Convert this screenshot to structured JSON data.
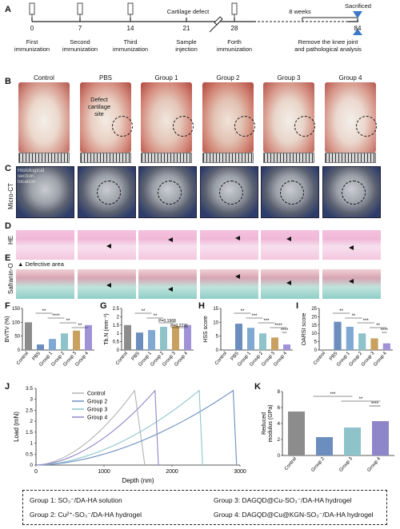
{
  "panels": {
    "A": "A",
    "B": "B",
    "C": "C",
    "D": "D",
    "E": "E",
    "F": "F",
    "G": "G",
    "H": "H",
    "I": "I",
    "J": "J",
    "K": "K"
  },
  "timeline": {
    "days": [
      "0",
      "7",
      "14",
      "21",
      "28",
      "84"
    ],
    "labels": [
      "First\nimmunization",
      "Second\nimmunization",
      "Third\nimmunization",
      "Sample\ninjection",
      "Forth\nimmunization",
      "Remove the knee joint\nand pathological analysis"
    ],
    "cartilage_defect": "Cartilage defect",
    "weeks": "8 weeks",
    "sacrificed": "Sacrificed"
  },
  "columns": [
    "Control",
    "PBS",
    "Group 1",
    "Group 2",
    "Group 3",
    "Group 4"
  ],
  "row_labels": {
    "microct": "Micro-CT",
    "he": "HE",
    "safranin": "Safranin-O"
  },
  "annotations": {
    "defect_site": "Defect\ncartilage\nsite",
    "histo_section": "Histological\nsection\nlocation",
    "defective_area": "Defective area"
  },
  "chart_data": [
    {
      "type": "bar",
      "id": "F",
      "ylabel": "BV/TV (%)",
      "categories": [
        "Control",
        "PBS",
        "Group 1",
        "Group 2",
        "Group 3",
        "Group 4"
      ],
      "values": [
        100,
        20,
        40,
        60,
        70,
        90
      ],
      "ylim": [
        0,
        150
      ],
      "yticks": [
        0,
        50,
        100,
        150
      ],
      "sig": [
        "**",
        "****",
        "**",
        "**"
      ]
    },
    {
      "type": "bar",
      "id": "G",
      "ylabel": "Tb.N (mm⁻¹)",
      "categories": [
        "Control",
        "PBS",
        "Group 1",
        "Group 2",
        "Group 3",
        "Group 4"
      ],
      "values": [
        1.5,
        1.05,
        1.2,
        1.4,
        1.45,
        1.5
      ],
      "ylim": [
        0,
        2.5
      ],
      "yticks": [
        0,
        0.5,
        1.0,
        1.5,
        2.0,
        2.5
      ],
      "sig": [
        "**",
        "**",
        "P=0.1968",
        "P=0.2226"
      ]
    },
    {
      "type": "bar",
      "id": "H",
      "ylabel": "HSS score",
      "categories": [
        "Control",
        "PBS",
        "Group 1",
        "Group 2",
        "Group 3",
        "Group 4"
      ],
      "values": [
        0,
        9.5,
        8,
        6,
        4.5,
        2
      ],
      "ylim": [
        0,
        15
      ],
      "yticks": [
        0,
        5,
        10,
        15
      ],
      "sig": [
        "**",
        "***",
        "***",
        "****",
        "****"
      ]
    },
    {
      "type": "bar",
      "id": "I",
      "ylabel": "OARSI score",
      "categories": [
        "Control",
        "PBS",
        "Group 1",
        "Group 2",
        "Group 3",
        "Group 4"
      ],
      "values": [
        0,
        17,
        14,
        10,
        7,
        4
      ],
      "ylim": [
        0,
        25
      ],
      "yticks": [
        0,
        5,
        10,
        15,
        20,
        25
      ],
      "sig": [
        "**",
        "**",
        "***",
        "**",
        "****"
      ]
    },
    {
      "type": "line",
      "id": "J",
      "xlabel": "Depth (nm)",
      "ylabel": "Load (mN)",
      "xlim": [
        0,
        3000
      ],
      "ylim": [
        0,
        3.5
      ],
      "xticks": [
        0,
        1000,
        2000,
        3000
      ],
      "yticks": [
        0,
        0.5,
        1.0,
        1.5,
        2.0,
        2.5,
        3.0,
        3.5
      ],
      "series": [
        {
          "name": "Control",
          "peak_depth": 1450,
          "end_depth": 1600,
          "peak_load": 3.4,
          "color": "#b3b3b3"
        },
        {
          "name": "Group 2",
          "peak_depth": 2900,
          "end_depth": 2950,
          "peak_load": 3.4,
          "color": "#6c8ebf"
        },
        {
          "name": "Group 3",
          "peak_depth": 2400,
          "end_depth": 2450,
          "peak_load": 3.4,
          "color": "#8ec3c9"
        },
        {
          "name": "Group 4",
          "peak_depth": 1750,
          "end_depth": 1800,
          "peak_load": 3.4,
          "color": "#8f85c9"
        }
      ]
    },
    {
      "type": "bar",
      "id": "K",
      "ylabel": "Reduced\nmodulus (GPa)",
      "categories": [
        "Control",
        "Group 2",
        "Group 3",
        "Group 4"
      ],
      "values": [
        5.5,
        2.3,
        3.5,
        4.3
      ],
      "ylim": [
        0,
        8
      ],
      "yticks": [
        0,
        2,
        4,
        6,
        8
      ],
      "sig": [
        "***",
        "**",
        "****"
      ]
    }
  ],
  "groups": [
    {
      "id": "Group 1:",
      "text": "SO₃⁻/DA-HA solution"
    },
    {
      "id": "Group 2:",
      "text": "Cu²⁺-SO₃⁻/DA-HA hydrogel"
    },
    {
      "id": "Group 3:",
      "text": "DAGQD@Cu-SO₃⁻/DA-HA hydrogel"
    },
    {
      "id": "Group 4:",
      "text": "DAGQD@Cu@KGN-SO₃⁻/DA-HA hydrogel"
    }
  ]
}
